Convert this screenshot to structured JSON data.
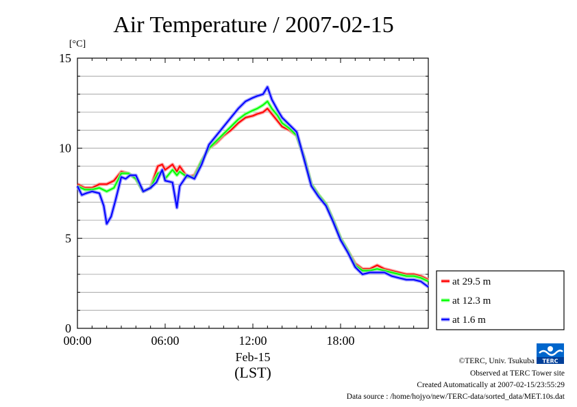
{
  "chart_data": {
    "type": "line",
    "title": "Air Temperature / 2007-02-15",
    "ylabel": "[°C]",
    "xlabel_date": "Feb-15",
    "xlabel_tz": "(LST)",
    "ylim": [
      0,
      15
    ],
    "yticks": [
      "0",
      "5",
      "10",
      "15"
    ],
    "yticks_values": [
      0,
      5,
      10,
      15
    ],
    "xlim": [
      0,
      24
    ],
    "xticks": [
      "00:00",
      "06:00",
      "12:00",
      "18:00"
    ],
    "xticks_values": [
      0,
      6,
      12,
      18
    ],
    "grid": true,
    "legend_position": "right",
    "series": [
      {
        "name": "at 29.5 m",
        "color": "#ff0000",
        "x": [
          0,
          0.5,
          1,
          1.5,
          2,
          2.5,
          3,
          3.5,
          4,
          4.5,
          5,
          5.5,
          5.8,
          6,
          6.5,
          6.8,
          7,
          7.5,
          8,
          8.5,
          9,
          9.5,
          10,
          10.5,
          11,
          11.5,
          12,
          12.3,
          12.7,
          13,
          13.3,
          13.7,
          14,
          14.5,
          15,
          15.5,
          16,
          16.5,
          17,
          17.5,
          18,
          18.5,
          19,
          19.5,
          20,
          20.5,
          21,
          21.5,
          22,
          22.5,
          23,
          23.5,
          24
        ],
        "y": [
          8.0,
          7.8,
          7.8,
          8.0,
          8.0,
          8.2,
          8.7,
          8.6,
          8.3,
          7.6,
          7.8,
          9.0,
          9.1,
          8.8,
          9.1,
          8.7,
          9.0,
          8.4,
          8.5,
          9.3,
          10.0,
          10.3,
          10.7,
          11.0,
          11.4,
          11.7,
          11.8,
          11.9,
          12.0,
          12.2,
          11.9,
          11.5,
          11.2,
          11.0,
          10.7,
          9.5,
          8.0,
          7.4,
          6.9,
          6.0,
          5.0,
          4.3,
          3.6,
          3.3,
          3.3,
          3.5,
          3.3,
          3.2,
          3.1,
          3.0,
          3.0,
          2.9,
          2.7
        ]
      },
      {
        "name": "at 12.3 m",
        "color": "#00ff00",
        "x": [
          0,
          0.5,
          1,
          1.5,
          2,
          2.5,
          3,
          3.5,
          4,
          4.5,
          5,
          5.5,
          5.8,
          6,
          6.5,
          6.8,
          7,
          7.5,
          8,
          8.5,
          9,
          9.5,
          10,
          10.5,
          11,
          11.5,
          12,
          12.3,
          12.7,
          13,
          13.3,
          13.7,
          14,
          14.5,
          15,
          15.5,
          16,
          16.5,
          17,
          17.5,
          18,
          18.5,
          19,
          19.5,
          20,
          20.5,
          21,
          21.5,
          22,
          22.5,
          23,
          23.5,
          24
        ],
        "y": [
          7.9,
          7.7,
          7.7,
          7.8,
          7.6,
          7.8,
          8.6,
          8.6,
          8.3,
          7.6,
          7.8,
          8.6,
          8.7,
          8.3,
          8.8,
          8.5,
          8.7,
          8.4,
          8.4,
          9.3,
          10.0,
          10.4,
          10.8,
          11.2,
          11.6,
          11.9,
          12.1,
          12.2,
          12.4,
          12.6,
          12.2,
          11.8,
          11.4,
          11.1,
          10.7,
          9.5,
          8.0,
          7.4,
          6.9,
          6.0,
          5.0,
          4.3,
          3.5,
          3.2,
          3.2,
          3.3,
          3.2,
          3.1,
          3.0,
          2.9,
          2.9,
          2.8,
          2.6
        ]
      },
      {
        "name": "at 1.6 m",
        "color": "#0000ff",
        "x": [
          0,
          0.3,
          0.6,
          1,
          1.5,
          1.8,
          2,
          2.3,
          2.6,
          3,
          3.3,
          3.6,
          4,
          4.5,
          5,
          5.4,
          5.8,
          6,
          6.5,
          6.8,
          7,
          7.5,
          8,
          8.5,
          9,
          9.5,
          10,
          10.5,
          11,
          11.5,
          12,
          12.3,
          12.7,
          13,
          13.3,
          13.7,
          14,
          14.5,
          15,
          15.5,
          16,
          16.5,
          17,
          17.5,
          18,
          18.5,
          19,
          19.5,
          20,
          20.5,
          21,
          21.5,
          22,
          22.5,
          23,
          23.5,
          24
        ],
        "y": [
          7.9,
          7.4,
          7.5,
          7.6,
          7.5,
          6.8,
          5.8,
          6.2,
          7.1,
          8.4,
          8.3,
          8.5,
          8.5,
          7.6,
          7.8,
          8.1,
          8.8,
          8.2,
          8.1,
          6.7,
          7.9,
          8.5,
          8.3,
          9.1,
          10.2,
          10.7,
          11.2,
          11.7,
          12.2,
          12.6,
          12.8,
          12.9,
          13.0,
          13.4,
          12.7,
          12.1,
          11.7,
          11.3,
          10.9,
          9.4,
          7.9,
          7.3,
          6.8,
          5.9,
          4.9,
          4.2,
          3.4,
          3.0,
          3.1,
          3.1,
          3.1,
          2.9,
          2.8,
          2.7,
          2.7,
          2.6,
          2.3
        ]
      }
    ]
  },
  "logo": {
    "text": "TERC"
  },
  "footer": {
    "copyright": "©TERC, Univ. Tsukuba",
    "site": "Observed at TERC Tower site",
    "created": "Created Automatically at 2007-02-15/23:55:29",
    "source": "Data source : /home/hojyo/new/TERC-data/sorted_data/MET.10s.dat"
  }
}
